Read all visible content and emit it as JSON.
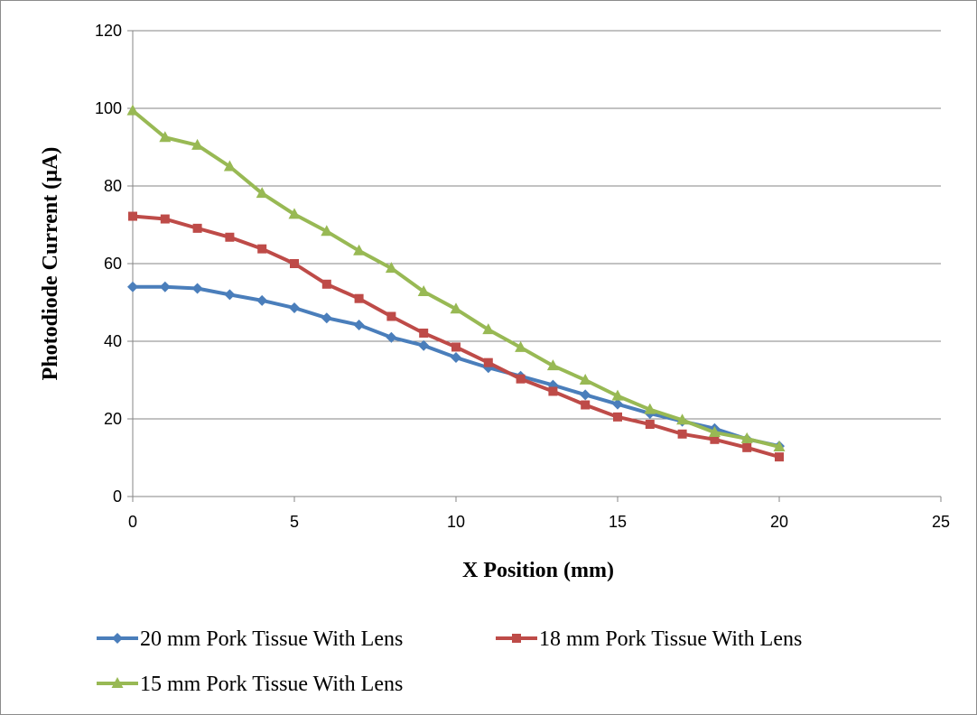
{
  "chart_data": {
    "type": "line",
    "title": "",
    "xlabel": "X Position (mm)",
    "ylabel": "Photodiode Current (µA)",
    "xlim": [
      0,
      25
    ],
    "ylim": [
      0,
      120
    ],
    "xticks": [
      0,
      5,
      10,
      15,
      20,
      25
    ],
    "yticks": [
      0,
      20,
      40,
      60,
      80,
      100,
      120
    ],
    "grid": "horizontal",
    "legend_position": "bottom",
    "x": [
      0,
      1,
      2,
      3,
      4,
      5,
      6,
      7,
      8,
      9,
      10,
      11,
      12,
      13,
      14,
      15,
      16,
      17,
      18,
      19,
      20
    ],
    "series": [
      {
        "name": "20 mm Pork Tissue With Lens",
        "color": "#4a7ebb",
        "marker": "diamond",
        "values": [
          54,
          54,
          53.6,
          52,
          50.5,
          48.6,
          46,
          44.2,
          41,
          38.9,
          35.8,
          33.2,
          31,
          28.7,
          26.2,
          23.8,
          21.4,
          19.4,
          17.5,
          14.8,
          13
        ]
      },
      {
        "name": "18 mm Pork Tissue With Lens",
        "color": "#be4b48",
        "marker": "square",
        "values": [
          72.2,
          71.5,
          69.1,
          66.8,
          63.8,
          60,
          54.7,
          51,
          46.4,
          42.1,
          38.5,
          34.5,
          30.3,
          27.1,
          23.6,
          20.5,
          18.6,
          16.1,
          14.7,
          12.6,
          10.2
        ]
      },
      {
        "name": "15 mm Pork Tissue With Lens",
        "color": "#98b954",
        "marker": "triangle",
        "values": [
          99.4,
          92.5,
          90.5,
          85,
          78.1,
          72.7,
          68.3,
          63.3,
          58.8,
          52.8,
          48.3,
          43,
          38.4,
          33.7,
          30,
          25.9,
          22.4,
          19.7,
          16.5,
          14.9,
          12.8
        ]
      }
    ]
  }
}
